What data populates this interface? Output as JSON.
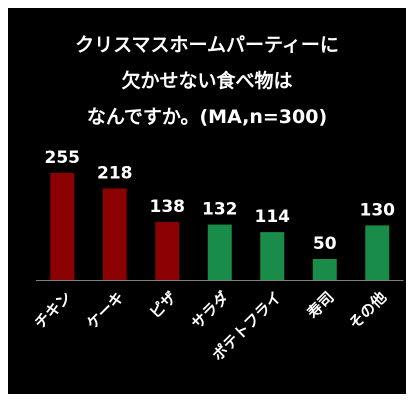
{
  "chart_data": {
    "type": "bar",
    "title_lines": [
      "クリスマスホームパーティーに",
      "欠かせない食べ物は",
      "なんですか。(MA,n=300)"
    ],
    "categories": [
      "チキン",
      "ケーキ",
      "ピザ",
      "サラダ",
      "ポテトフライ",
      "寿司",
      "その他"
    ],
    "values": [
      255,
      218,
      138,
      132,
      114,
      50,
      130
    ],
    "bar_colors": [
      "#8b0000",
      "#8b0000",
      "#8b0000",
      "#1a8c4a",
      "#1a8c4a",
      "#1a8c4a",
      "#1a8c4a"
    ],
    "value_label_color": "#ffffff",
    "background_color": "#000000",
    "axis_color": "#7f7f7f",
    "ylim": [
      0,
      300
    ],
    "grid": false,
    "legend": "none",
    "xlabel": "",
    "ylabel": ""
  }
}
